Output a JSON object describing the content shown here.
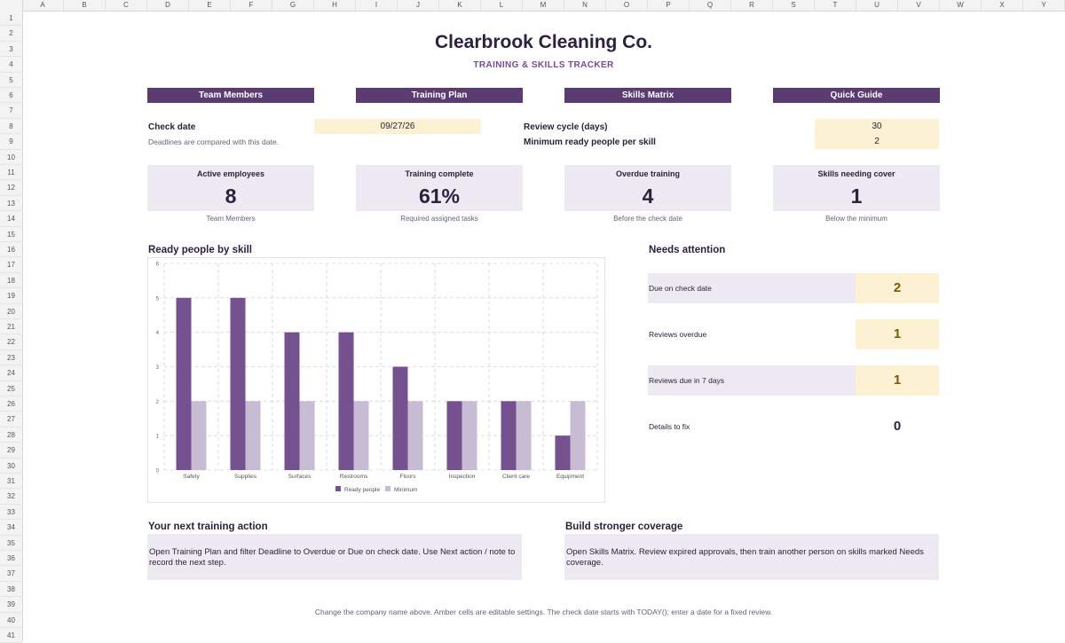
{
  "sheet": {
    "columns": [
      "A",
      "B",
      "C",
      "D",
      "E",
      "F",
      "G",
      "H",
      "I",
      "J",
      "K",
      "L",
      "M",
      "N",
      "O",
      "P",
      "Q",
      "R",
      "S",
      "T",
      "U",
      "V",
      "W",
      "X",
      "Y"
    ],
    "rows": [
      "1",
      "2",
      "3",
      "4",
      "5",
      "6",
      "7",
      "8",
      "9",
      "10",
      "11",
      "12",
      "13",
      "14",
      "15",
      "16",
      "17",
      "18",
      "19",
      "20",
      "21",
      "22",
      "23",
      "24",
      "25",
      "26",
      "27",
      "28",
      "29",
      "30",
      "31",
      "32",
      "33",
      "34",
      "35",
      "36",
      "37",
      "38",
      "39",
      "40",
      "41"
    ]
  },
  "header": {
    "title": "Clearbrook Cleaning Co.",
    "subtitle": "TRAINING & SKILLS TRACKER"
  },
  "nav": [
    {
      "label": "Team Members"
    },
    {
      "label": "Training Plan"
    },
    {
      "label": "Skills Matrix"
    },
    {
      "label": "Quick Guide"
    }
  ],
  "settings": {
    "check_date_label": "Check date",
    "check_date_value": "09/27/26",
    "check_date_note": "Deadlines are compared with this date.",
    "review_cycle_label": "Review cycle (days)",
    "review_cycle_value": "30",
    "min_ready_label": "Minimum ready people per skill",
    "min_ready_value": "2"
  },
  "kpis": [
    {
      "title": "Active employees",
      "value": "8",
      "sub": "Team Members"
    },
    {
      "title": "Training complete",
      "value": "61%",
      "sub": "Required assigned tasks"
    },
    {
      "title": "Overdue training",
      "value": "4",
      "sub": "Before the check date"
    },
    {
      "title": "Skills needing cover",
      "value": "1",
      "sub": "Below the minimum"
    }
  ],
  "chart_section_title": "Ready people by skill",
  "chart_data": {
    "type": "bar",
    "categories": [
      "Safety",
      "Supplies",
      "Surfaces",
      "Restrooms",
      "Floors",
      "Inspection",
      "Client care",
      "Equipment"
    ],
    "series": [
      {
        "name": "Ready people",
        "values": [
          5,
          5,
          4,
          4,
          3,
          2,
          2,
          1
        ]
      },
      {
        "name": "Minimum",
        "values": [
          2,
          2,
          2,
          2,
          2,
          2,
          2,
          2
        ]
      }
    ],
    "yticks": [
      "0",
      "1",
      "2",
      "3",
      "4",
      "5",
      "6"
    ],
    "ylim": [
      0,
      6
    ],
    "grid": true,
    "legend": "bottom",
    "colors": {
      "Ready people": "#76518f",
      "Minimum": "#c8bbd4"
    }
  },
  "attention": {
    "title": "Needs attention",
    "items": [
      {
        "label": "Due on check date",
        "value": "2"
      },
      {
        "label": "Reviews overdue",
        "value": "1"
      },
      {
        "label": "Reviews due in 7 days",
        "value": "1"
      },
      {
        "label": "Details to fix",
        "value": "0"
      }
    ]
  },
  "next_action": {
    "title": "Your next training action",
    "text": "Open Training Plan and filter Deadline to Overdue or Due on check date. Use Next action / note to record the next step."
  },
  "coverage": {
    "title": "Build stronger coverage",
    "text": "Open Skills Matrix. Review expired approvals, then train another person on skills marked Needs coverage."
  },
  "footer": "Change the company name above. Amber cells are editable settings. The check date starts with TODAY(); enter a date for a fixed review.",
  "colors": {
    "accent": "#5a3b72",
    "amber": "#fdf1d4",
    "panel": "#eeeaf4"
  }
}
